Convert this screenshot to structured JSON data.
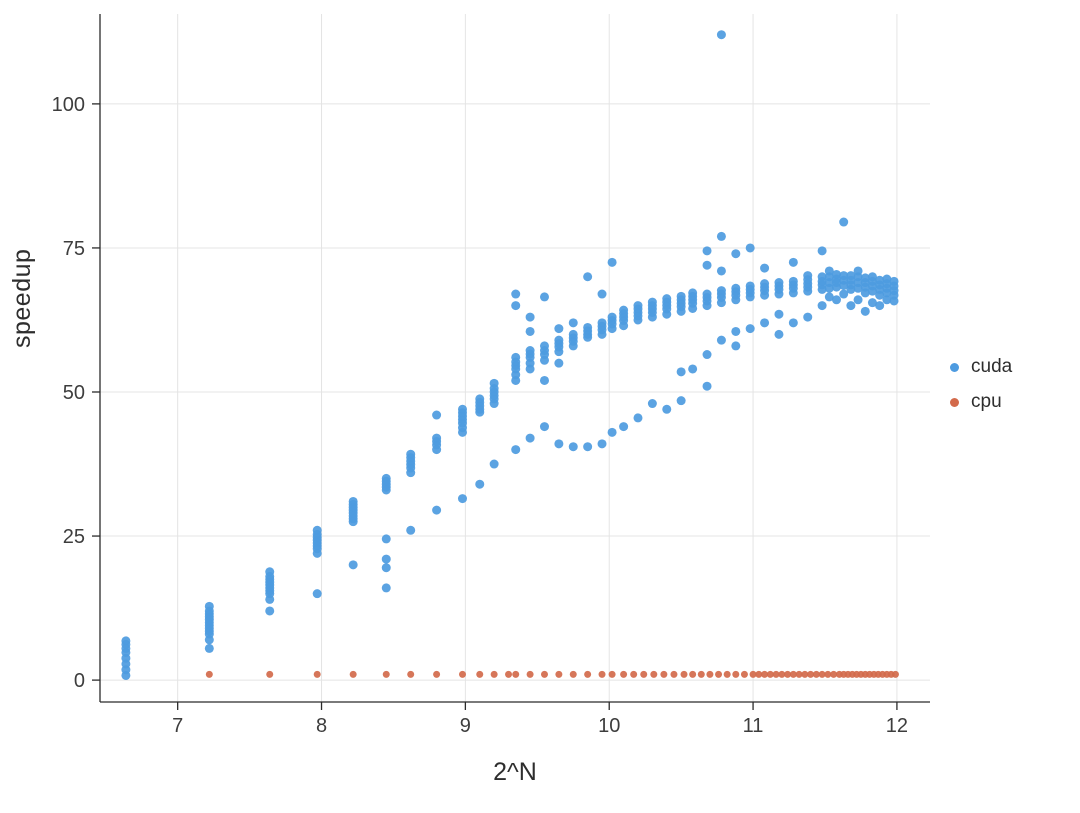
{
  "chart_data": {
    "type": "scatter",
    "title": "",
    "xlabel": "2^N",
    "ylabel": "speedup",
    "xlim": [
      6.46,
      12.23
    ],
    "ylim": [
      -3.8,
      115.6
    ],
    "xticks": [
      7,
      8,
      9,
      10,
      11,
      12
    ],
    "yticks": [
      0,
      25,
      50,
      75,
      100
    ],
    "grid": true,
    "legend_position": "right",
    "grid_color": "#e4e4e4",
    "axis_color": "#2b2b2b",
    "tick_label_color": "#3d3d3d",
    "series": [
      {
        "name": "cuda",
        "color": "#4d9be0",
        "marker_size": 4.5,
        "clusters": [
          {
            "x": 6.64,
            "ys": [
              0.8,
              1.8,
              2.8,
              3.8,
              4.8,
              5.5,
              6.2,
              6.8
            ]
          },
          {
            "x": 7.22,
            "ys": [
              5.5,
              7,
              8,
              8.5,
              9,
              9.5,
              10,
              10.5,
              11,
              11.5,
              12,
              12.8
            ]
          },
          {
            "x": 7.64,
            "ys": [
              12,
              14,
              15,
              15.5,
              16,
              16.5,
              17,
              17.5,
              18,
              18.8
            ]
          },
          {
            "x": 7.97,
            "ys": [
              15,
              22,
              22.8,
              23.3,
              23.8,
              24.3,
              24.8,
              25.3,
              26
            ]
          },
          {
            "x": 8.22,
            "ys": [
              20,
              27.5,
              28,
              28.5,
              29,
              29.5,
              30,
              30.5,
              31
            ]
          },
          {
            "x": 8.45,
            "ys": [
              16,
              19.5,
              21,
              24.5,
              33,
              33.5,
              34,
              34.5,
              35
            ]
          },
          {
            "x": 8.62,
            "ys": [
              26,
              36,
              36.8,
              37.4,
              38,
              38.6,
              39.2
            ]
          },
          {
            "x": 8.8,
            "ys": [
              29.5,
              40,
              40.8,
              41.4,
              42,
              46
            ]
          },
          {
            "x": 8.98,
            "ys": [
              31.5,
              43,
              43.8,
              44.6,
              45.2,
              45.8,
              46.4,
              47
            ]
          },
          {
            "x": 9.1,
            "ys": [
              34,
              46.5,
              47,
              47.6,
              48.2,
              48.8
            ]
          },
          {
            "x": 9.2,
            "ys": [
              37.5,
              48,
              48.8,
              49.4,
              50,
              50.6,
              51.5
            ]
          },
          {
            "x": 9.35,
            "ys": [
              40,
              52,
              53,
              54,
              54.6,
              55.2,
              56,
              65,
              67
            ]
          },
          {
            "x": 9.45,
            "ys": [
              42,
              54,
              55,
              56,
              56.6,
              57.2,
              60.5,
              63
            ]
          },
          {
            "x": 9.55,
            "ys": [
              44,
              52,
              55.5,
              56.5,
              57.2,
              58,
              66.5
            ]
          },
          {
            "x": 9.65,
            "ys": [
              41,
              55,
              57,
              57.8,
              58.4,
              59,
              61
            ]
          },
          {
            "x": 9.75,
            "ys": [
              40.5,
              58,
              58.8,
              59.4,
              60,
              62
            ]
          },
          {
            "x": 9.85,
            "ys": [
              40.5,
              59.5,
              60,
              60.6,
              61.2,
              70
            ]
          },
          {
            "x": 9.95,
            "ys": [
              41,
              60,
              60.8,
              61.4,
              62,
              67
            ]
          },
          {
            "x": 10.02,
            "ys": [
              43,
              61,
              61.8,
              62.4,
              63,
              72.5
            ]
          },
          {
            "x": 10.1,
            "ys": [
              44,
              61.5,
              62.4,
              63,
              63.6,
              64.2
            ]
          },
          {
            "x": 10.2,
            "ys": [
              45.5,
              62.5,
              63.2,
              63.8,
              64.4,
              65
            ]
          },
          {
            "x": 10.3,
            "ys": [
              48,
              63,
              63.8,
              64.4,
              65,
              65.6
            ]
          },
          {
            "x": 10.4,
            "ys": [
              47,
              63.5,
              64.4,
              65,
              65.6,
              66.2
            ]
          },
          {
            "x": 10.5,
            "ys": [
              48.5,
              53.5,
              64,
              64.8,
              65.4,
              66,
              66.6
            ]
          },
          {
            "x": 10.58,
            "ys": [
              54,
              64.5,
              65.4,
              66,
              66.6,
              67.2
            ]
          },
          {
            "x": 10.68,
            "ys": [
              51,
              56.5,
              65,
              65.8,
              66.4,
              67,
              72,
              74.5
            ]
          },
          {
            "x": 10.78,
            "ys": [
              59,
              65.5,
              66.4,
              67,
              67.6,
              71,
              77,
              112
            ]
          },
          {
            "x": 10.88,
            "ys": [
              58,
              60.5,
              66,
              66.8,
              67.4,
              68,
              74
            ]
          },
          {
            "x": 10.98,
            "ys": [
              61,
              66.5,
              67.2,
              67.8,
              68.4,
              75
            ]
          },
          {
            "x": 11.08,
            "ys": [
              62,
              66.8,
              67.6,
              68.2,
              68.8,
              71.5
            ]
          },
          {
            "x": 11.18,
            "ys": [
              60,
              63.5,
              67,
              67.8,
              68.4,
              69
            ]
          },
          {
            "x": 11.28,
            "ys": [
              62,
              67.2,
              68,
              68.6,
              69.2,
              72.5
            ]
          },
          {
            "x": 11.38,
            "ys": [
              63,
              67.5,
              68.2,
              68.8,
              69.5,
              70.2
            ]
          },
          {
            "x": 11.48,
            "ys": [
              65,
              67.8,
              68.6,
              69.2,
              70,
              74.5
            ]
          },
          {
            "x": 11.53,
            "ys": [
              66.5,
              68,
              69,
              70,
              71
            ]
          },
          {
            "x": 11.58,
            "ys": [
              66,
              68.2,
              69,
              69.6,
              70.4
            ]
          },
          {
            "x": 11.63,
            "ys": [
              67,
              68.5,
              69.4,
              70.2,
              79.5
            ]
          },
          {
            "x": 11.68,
            "ys": [
              65,
              67.8,
              68.6,
              69.4,
              70.2
            ]
          },
          {
            "x": 11.73,
            "ys": [
              66,
              68,
              69,
              70,
              71
            ]
          },
          {
            "x": 11.78,
            "ys": [
              64,
              67.2,
              68.2,
              69,
              69.8
            ]
          },
          {
            "x": 11.83,
            "ys": [
              65.5,
              67.5,
              68.4,
              69.2,
              70
            ]
          },
          {
            "x": 11.88,
            "ys": [
              65,
              66.8,
              67.8,
              68.6,
              69.4
            ]
          },
          {
            "x": 11.93,
            "ys": [
              66,
              67.2,
              68,
              68.8,
              69.6
            ]
          },
          {
            "x": 11.98,
            "ys": [
              65.8,
              66.8,
              67.6,
              68.4,
              69.2
            ]
          }
        ]
      },
      {
        "name": "cpu",
        "color": "#d36a4b",
        "marker_size": 3.5,
        "y_constant": 1,
        "xs": [
          7.22,
          7.64,
          7.97,
          8.22,
          8.45,
          8.62,
          8.8,
          8.98,
          9.1,
          9.2,
          9.3,
          9.35,
          9.45,
          9.55,
          9.65,
          9.75,
          9.85,
          9.95,
          10.02,
          10.1,
          10.17,
          10.24,
          10.31,
          10.38,
          10.45,
          10.52,
          10.58,
          10.64,
          10.7,
          10.76,
          10.82,
          10.88,
          10.94,
          11.0,
          11.04,
          11.08,
          11.12,
          11.16,
          11.2,
          11.24,
          11.28,
          11.32,
          11.36,
          11.4,
          11.44,
          11.48,
          11.52,
          11.56,
          11.6,
          11.63,
          11.66,
          11.69,
          11.72,
          11.75,
          11.78,
          11.81,
          11.84,
          11.87,
          11.9,
          11.93,
          11.96,
          11.99
        ]
      }
    ]
  }
}
